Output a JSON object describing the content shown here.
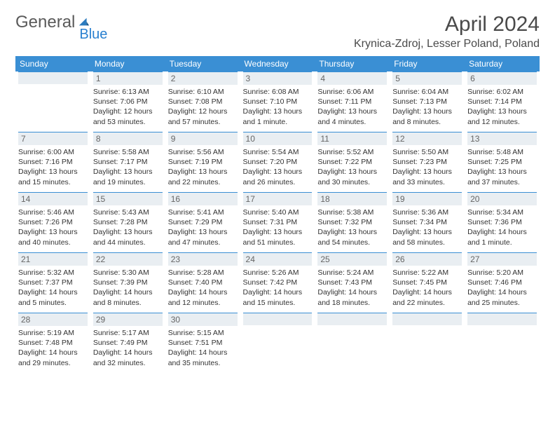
{
  "logo": {
    "text1": "General",
    "text2": "Blue"
  },
  "title": "April 2024",
  "location": "Krynica-Zdroj, Lesser Poland, Poland",
  "colors": {
    "header_bg": "#3a8fd4",
    "header_text": "#ffffff",
    "daybar_bg": "#e9eef2",
    "daybar_border": "#3a8fd4",
    "text": "#333333",
    "logo_gray": "#5a5a5a",
    "logo_blue": "#2980d0"
  },
  "weekdays": [
    "Sunday",
    "Monday",
    "Tuesday",
    "Wednesday",
    "Thursday",
    "Friday",
    "Saturday"
  ],
  "grid": [
    [
      {
        "n": "",
        "lines": []
      },
      {
        "n": "1",
        "lines": [
          "Sunrise: 6:13 AM",
          "Sunset: 7:06 PM",
          "Daylight: 12 hours",
          "and 53 minutes."
        ]
      },
      {
        "n": "2",
        "lines": [
          "Sunrise: 6:10 AM",
          "Sunset: 7:08 PM",
          "Daylight: 12 hours",
          "and 57 minutes."
        ]
      },
      {
        "n": "3",
        "lines": [
          "Sunrise: 6:08 AM",
          "Sunset: 7:10 PM",
          "Daylight: 13 hours",
          "and 1 minute."
        ]
      },
      {
        "n": "4",
        "lines": [
          "Sunrise: 6:06 AM",
          "Sunset: 7:11 PM",
          "Daylight: 13 hours",
          "and 4 minutes."
        ]
      },
      {
        "n": "5",
        "lines": [
          "Sunrise: 6:04 AM",
          "Sunset: 7:13 PM",
          "Daylight: 13 hours",
          "and 8 minutes."
        ]
      },
      {
        "n": "6",
        "lines": [
          "Sunrise: 6:02 AM",
          "Sunset: 7:14 PM",
          "Daylight: 13 hours",
          "and 12 minutes."
        ]
      }
    ],
    [
      {
        "n": "7",
        "lines": [
          "Sunrise: 6:00 AM",
          "Sunset: 7:16 PM",
          "Daylight: 13 hours",
          "and 15 minutes."
        ]
      },
      {
        "n": "8",
        "lines": [
          "Sunrise: 5:58 AM",
          "Sunset: 7:17 PM",
          "Daylight: 13 hours",
          "and 19 minutes."
        ]
      },
      {
        "n": "9",
        "lines": [
          "Sunrise: 5:56 AM",
          "Sunset: 7:19 PM",
          "Daylight: 13 hours",
          "and 22 minutes."
        ]
      },
      {
        "n": "10",
        "lines": [
          "Sunrise: 5:54 AM",
          "Sunset: 7:20 PM",
          "Daylight: 13 hours",
          "and 26 minutes."
        ]
      },
      {
        "n": "11",
        "lines": [
          "Sunrise: 5:52 AM",
          "Sunset: 7:22 PM",
          "Daylight: 13 hours",
          "and 30 minutes."
        ]
      },
      {
        "n": "12",
        "lines": [
          "Sunrise: 5:50 AM",
          "Sunset: 7:23 PM",
          "Daylight: 13 hours",
          "and 33 minutes."
        ]
      },
      {
        "n": "13",
        "lines": [
          "Sunrise: 5:48 AM",
          "Sunset: 7:25 PM",
          "Daylight: 13 hours",
          "and 37 minutes."
        ]
      }
    ],
    [
      {
        "n": "14",
        "lines": [
          "Sunrise: 5:46 AM",
          "Sunset: 7:26 PM",
          "Daylight: 13 hours",
          "and 40 minutes."
        ]
      },
      {
        "n": "15",
        "lines": [
          "Sunrise: 5:43 AM",
          "Sunset: 7:28 PM",
          "Daylight: 13 hours",
          "and 44 minutes."
        ]
      },
      {
        "n": "16",
        "lines": [
          "Sunrise: 5:41 AM",
          "Sunset: 7:29 PM",
          "Daylight: 13 hours",
          "and 47 minutes."
        ]
      },
      {
        "n": "17",
        "lines": [
          "Sunrise: 5:40 AM",
          "Sunset: 7:31 PM",
          "Daylight: 13 hours",
          "and 51 minutes."
        ]
      },
      {
        "n": "18",
        "lines": [
          "Sunrise: 5:38 AM",
          "Sunset: 7:32 PM",
          "Daylight: 13 hours",
          "and 54 minutes."
        ]
      },
      {
        "n": "19",
        "lines": [
          "Sunrise: 5:36 AM",
          "Sunset: 7:34 PM",
          "Daylight: 13 hours",
          "and 58 minutes."
        ]
      },
      {
        "n": "20",
        "lines": [
          "Sunrise: 5:34 AM",
          "Sunset: 7:36 PM",
          "Daylight: 14 hours",
          "and 1 minute."
        ]
      }
    ],
    [
      {
        "n": "21",
        "lines": [
          "Sunrise: 5:32 AM",
          "Sunset: 7:37 PM",
          "Daylight: 14 hours",
          "and 5 minutes."
        ]
      },
      {
        "n": "22",
        "lines": [
          "Sunrise: 5:30 AM",
          "Sunset: 7:39 PM",
          "Daylight: 14 hours",
          "and 8 minutes."
        ]
      },
      {
        "n": "23",
        "lines": [
          "Sunrise: 5:28 AM",
          "Sunset: 7:40 PM",
          "Daylight: 14 hours",
          "and 12 minutes."
        ]
      },
      {
        "n": "24",
        "lines": [
          "Sunrise: 5:26 AM",
          "Sunset: 7:42 PM",
          "Daylight: 14 hours",
          "and 15 minutes."
        ]
      },
      {
        "n": "25",
        "lines": [
          "Sunrise: 5:24 AM",
          "Sunset: 7:43 PM",
          "Daylight: 14 hours",
          "and 18 minutes."
        ]
      },
      {
        "n": "26",
        "lines": [
          "Sunrise: 5:22 AM",
          "Sunset: 7:45 PM",
          "Daylight: 14 hours",
          "and 22 minutes."
        ]
      },
      {
        "n": "27",
        "lines": [
          "Sunrise: 5:20 AM",
          "Sunset: 7:46 PM",
          "Daylight: 14 hours",
          "and 25 minutes."
        ]
      }
    ],
    [
      {
        "n": "28",
        "lines": [
          "Sunrise: 5:19 AM",
          "Sunset: 7:48 PM",
          "Daylight: 14 hours",
          "and 29 minutes."
        ]
      },
      {
        "n": "29",
        "lines": [
          "Sunrise: 5:17 AM",
          "Sunset: 7:49 PM",
          "Daylight: 14 hours",
          "and 32 minutes."
        ]
      },
      {
        "n": "30",
        "lines": [
          "Sunrise: 5:15 AM",
          "Sunset: 7:51 PM",
          "Daylight: 14 hours",
          "and 35 minutes."
        ]
      },
      {
        "n": "",
        "lines": []
      },
      {
        "n": "",
        "lines": []
      },
      {
        "n": "",
        "lines": []
      },
      {
        "n": "",
        "lines": []
      }
    ]
  ]
}
